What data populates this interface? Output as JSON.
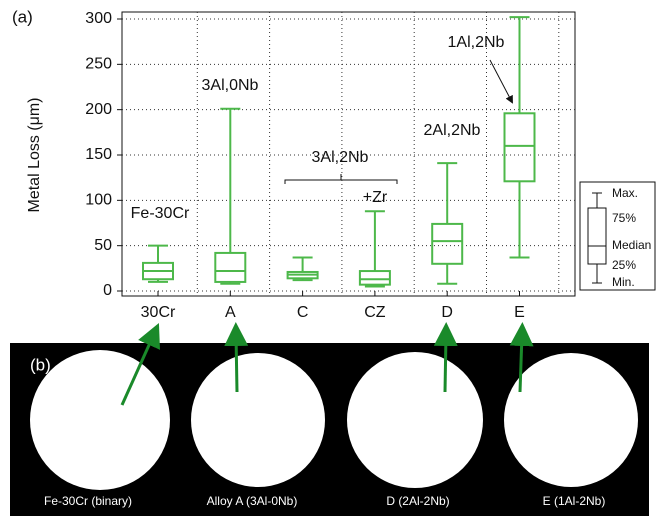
{
  "chart_data": {
    "type": "box",
    "y_label": "Metal Loss (μm)",
    "color": "#4db84a",
    "categories": [
      "30Cr",
      "A",
      "C",
      "CZ",
      "D",
      "E"
    ],
    "boxes": [
      {
        "min": 10,
        "q1": 13,
        "median": 22,
        "q3": 31,
        "max": 50
      },
      {
        "min": 8,
        "q1": 10,
        "median": 22,
        "q3": 42,
        "max": 201
      },
      {
        "min": 12,
        "q1": 14,
        "median": 18,
        "q3": 21,
        "max": 37
      },
      {
        "min": 5,
        "q1": 7,
        "median": 13,
        "q3": 22,
        "max": 88
      },
      {
        "min": 8,
        "q1": 30,
        "median": 55,
        "q3": 74,
        "max": 141
      },
      {
        "min": 37,
        "q1": 121,
        "median": 160,
        "q3": 196,
        "max": 302
      }
    ],
    "ylim": [
      0,
      305
    ],
    "yticks": [
      0,
      50,
      100,
      150,
      200,
      250,
      300
    ],
    "grid": true,
    "annotations": [
      "(a)",
      "Fe-30Cr",
      "3Al,0Nb",
      "3Al,2Nb",
      "+Zr",
      "2Al,2Nb",
      "1Al,2Nb"
    ],
    "legend_labels": [
      "Max.",
      "75%",
      "Median",
      "25%",
      "Min."
    ]
  },
  "image_panel": {
    "label": "(b)",
    "captions": [
      "Fe-30Cr (binary)",
      "Alloy A (3Al-0Nb)",
      "D (2Al-2Nb)",
      "E (1Al-2Nb)"
    ]
  }
}
